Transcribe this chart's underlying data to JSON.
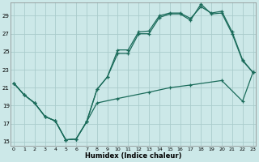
{
  "xlabel": "Humidex (Indice chaleur)",
  "bg_color": "#cce8e8",
  "grid_color": "#aacccc",
  "line_color": "#1a6b5a",
  "xlim_min": -0.3,
  "xlim_max": 23.3,
  "ylim_min": 14.5,
  "ylim_max": 30.5,
  "yticks": [
    15,
    17,
    19,
    21,
    23,
    25,
    27,
    29
  ],
  "xticks": [
    0,
    1,
    2,
    3,
    4,
    5,
    6,
    7,
    8,
    9,
    10,
    11,
    12,
    13,
    14,
    15,
    16,
    17,
    18,
    19,
    20,
    21,
    22,
    23
  ],
  "series_volatile_x": [
    0,
    1,
    2,
    3,
    4,
    5,
    6,
    7,
    8,
    9,
    10,
    11,
    12,
    13,
    14,
    15,
    16,
    17,
    18,
    19,
    20,
    21,
    22,
    23
  ],
  "series_volatile_y": [
    21.5,
    20.2,
    19.3,
    17.8,
    17.3,
    15.2,
    15.3,
    17.2,
    20.8,
    22.2,
    24.8,
    24.8,
    27.0,
    27.0,
    28.8,
    29.2,
    29.2,
    28.5,
    30.3,
    29.2,
    29.3,
    27.0,
    24.0,
    22.7
  ],
  "series_upper_x": [
    0,
    1,
    2,
    3,
    4,
    5,
    6,
    7,
    8,
    9,
    10,
    11,
    12,
    13,
    14,
    15,
    16,
    17,
    18,
    19,
    20,
    21,
    22,
    23
  ],
  "series_upper_y": [
    21.5,
    20.2,
    19.3,
    17.8,
    17.3,
    15.2,
    15.3,
    17.2,
    20.8,
    22.2,
    25.2,
    25.2,
    27.2,
    27.3,
    29.0,
    29.3,
    29.3,
    28.7,
    30.0,
    29.3,
    29.5,
    27.2,
    24.1,
    22.7
  ],
  "series_flat_x": [
    0,
    1,
    2,
    3,
    4,
    5,
    6,
    7,
    8,
    10,
    13,
    15,
    17,
    20,
    22,
    23
  ],
  "series_flat_y": [
    21.5,
    20.2,
    19.3,
    17.8,
    17.3,
    15.2,
    15.3,
    17.2,
    19.3,
    19.8,
    20.5,
    21.0,
    21.3,
    21.8,
    19.5,
    22.7
  ]
}
